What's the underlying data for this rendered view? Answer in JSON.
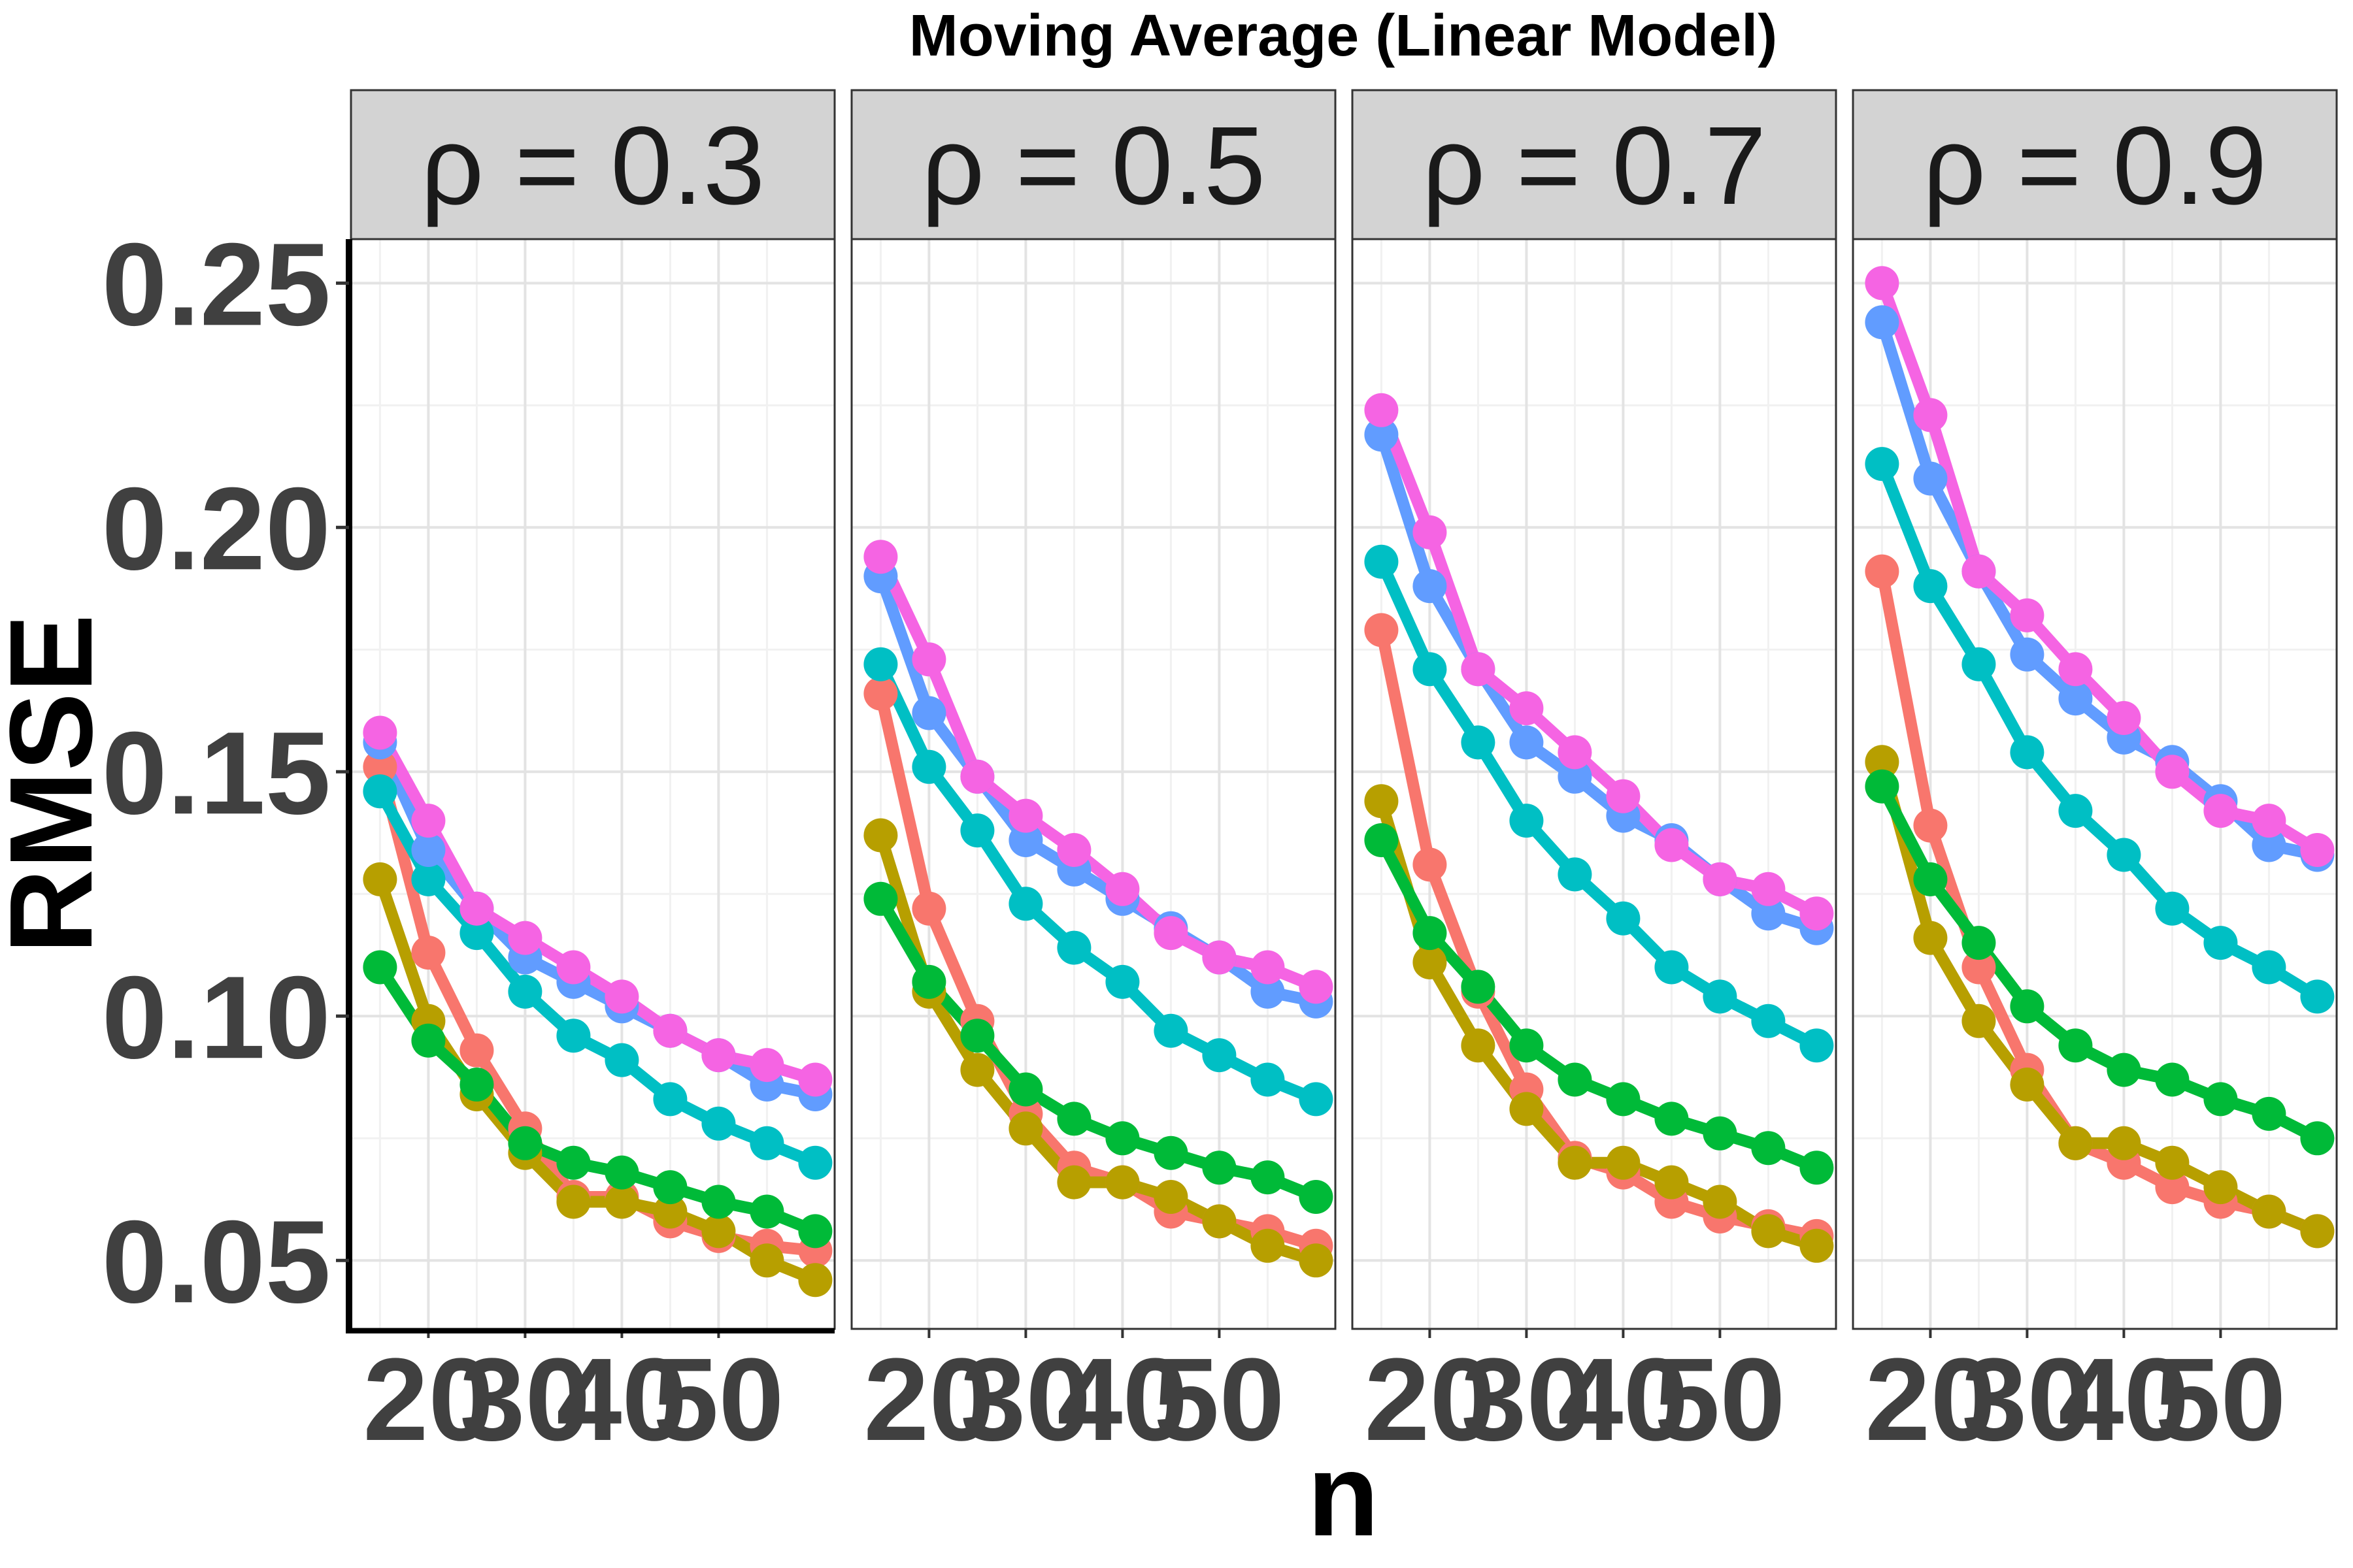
{
  "chart_data": {
    "type": "line",
    "title": "Moving Average (Linear Model)",
    "xlabel": "n",
    "ylabel": "RMSE",
    "facet_var_symbol": "ρ",
    "facets": [
      {
        "label": "ρ = 0.3",
        "series": [
          {
            "name": "series-1",
            "color": "#F8766D",
            "values": [
              0.151,
              0.113,
              0.093,
              0.077,
              0.063,
              0.063,
              0.058,
              0.055,
              0.053,
              0.052
            ]
          },
          {
            "name": "series-2",
            "color": "#B79F00",
            "values": [
              0.128,
              0.099,
              0.084,
              0.072,
              0.062,
              0.062,
              0.06,
              0.056,
              0.05,
              0.046
            ]
          },
          {
            "name": "series-3",
            "color": "#00BA38",
            "values": [
              0.11,
              0.095,
              0.086,
              0.074,
              0.07,
              0.068,
              0.065,
              0.062,
              0.06,
              0.056
            ]
          },
          {
            "name": "series-4",
            "color": "#00BFC4",
            "values": [
              0.146,
              0.128,
              0.117,
              0.105,
              0.096,
              0.091,
              0.083,
              0.078,
              0.074,
              0.07
            ]
          },
          {
            "name": "series-5",
            "color": "#619CFF",
            "values": [
              0.156,
              0.134,
              0.122,
              0.112,
              0.107,
              0.102,
              0.097,
              0.092,
              0.086,
              0.084
            ]
          },
          {
            "name": "series-6",
            "color": "#F564E3",
            "values": [
              0.158,
              0.14,
              0.122,
              0.116,
              0.11,
              0.104,
              0.097,
              0.092,
              0.09,
              0.087
            ]
          }
        ]
      },
      {
        "label": "ρ = 0.5",
        "series": [
          {
            "name": "series-1",
            "color": "#F8766D",
            "values": [
              0.166,
              0.122,
              0.099,
              0.08,
              0.069,
              0.066,
              0.06,
              0.058,
              0.056,
              0.053
            ]
          },
          {
            "name": "series-2",
            "color": "#B79F00",
            "values": [
              0.137,
              0.105,
              0.089,
              0.077,
              0.066,
              0.066,
              0.063,
              0.058,
              0.053,
              0.05
            ]
          },
          {
            "name": "series-3",
            "color": "#00BA38",
            "values": [
              0.124,
              0.107,
              0.096,
              0.085,
              0.079,
              0.075,
              0.072,
              0.069,
              0.067,
              0.063
            ]
          },
          {
            "name": "series-4",
            "color": "#00BFC4",
            "values": [
              0.172,
              0.151,
              0.138,
              0.123,
              0.114,
              0.107,
              0.097,
              0.092,
              0.087,
              0.083
            ]
          },
          {
            "name": "series-5",
            "color": "#619CFF",
            "values": [
              0.19,
              0.162,
              0.149,
              0.136,
              0.13,
              0.124,
              0.118,
              0.112,
              0.105,
              0.103
            ]
          },
          {
            "name": "series-6",
            "color": "#F564E3",
            "values": [
              0.194,
              0.173,
              0.149,
              0.141,
              0.134,
              0.126,
              0.117,
              0.112,
              0.11,
              0.106
            ]
          }
        ]
      },
      {
        "label": "ρ = 0.7",
        "series": [
          {
            "name": "series-1",
            "color": "#F8766D",
            "values": [
              0.179,
              0.131,
              0.105,
              0.085,
              0.071,
              0.068,
              0.062,
              0.059,
              0.057,
              0.055
            ]
          },
          {
            "name": "series-2",
            "color": "#B79F00",
            "values": [
              0.144,
              0.111,
              0.094,
              0.081,
              0.07,
              0.07,
              0.066,
              0.062,
              0.056,
              0.053
            ]
          },
          {
            "name": "series-3",
            "color": "#00BA38",
            "values": [
              0.136,
              0.117,
              0.106,
              0.094,
              0.087,
              0.083,
              0.079,
              0.076,
              0.073,
              0.069
            ]
          },
          {
            "name": "series-4",
            "color": "#00BFC4",
            "values": [
              0.193,
              0.171,
              0.156,
              0.14,
              0.129,
              0.12,
              0.11,
              0.104,
              0.099,
              0.094
            ]
          },
          {
            "name": "series-5",
            "color": "#619CFF",
            "values": [
              0.219,
              0.188,
              0.171,
              0.156,
              0.149,
              0.141,
              0.136,
              0.128,
              0.121,
              0.118
            ]
          },
          {
            "name": "series-6",
            "color": "#F564E3",
            "values": [
              0.224,
              0.199,
              0.171,
              0.163,
              0.154,
              0.145,
              0.135,
              0.128,
              0.126,
              0.121
            ]
          }
        ]
      },
      {
        "label": "ρ = 0.9",
        "series": [
          {
            "name": "series-1",
            "color": "#F8766D",
            "values": [
              0.191,
              0.139,
              0.11,
              0.089,
              0.074,
              0.07,
              0.065,
              0.062,
              0.06,
              0.056
            ]
          },
          {
            "name": "series-2",
            "color": "#B79F00",
            "values": [
              0.152,
              0.116,
              0.099,
              0.086,
              0.074,
              0.074,
              0.07,
              0.065,
              0.06,
              0.056
            ]
          },
          {
            "name": "series-3",
            "color": "#00BA38",
            "values": [
              0.147,
              0.128,
              0.115,
              0.102,
              0.094,
              0.089,
              0.087,
              0.083,
              0.08,
              0.075
            ]
          },
          {
            "name": "series-4",
            "color": "#00BFC4",
            "values": [
              0.213,
              0.188,
              0.172,
              0.154,
              0.142,
              0.133,
              0.122,
              0.115,
              0.11,
              0.104
            ]
          },
          {
            "name": "series-5",
            "color": "#619CFF",
            "values": [
              0.242,
              0.21,
              0.191,
              0.174,
              0.165,
              0.157,
              0.152,
              0.144,
              0.135,
              0.133
            ]
          },
          {
            "name": "series-6",
            "color": "#F564E3",
            "values": [
              0.25,
              0.223,
              0.191,
              0.182,
              0.171,
              0.161,
              0.15,
              0.142,
              0.14,
              0.134
            ]
          }
        ]
      }
    ],
    "x": [
      15,
      20,
      25,
      30,
      35,
      40,
      45,
      50,
      55,
      60
    ],
    "xlim": [
      12,
      62
    ],
    "x_ticks": [
      20,
      30,
      40,
      50
    ],
    "x_tick_labels": [
      "20",
      "30",
      "40",
      "50"
    ],
    "ylim": [
      0.036,
      0.259
    ],
    "y_ticks": [
      0.05,
      0.1,
      0.15,
      0.2,
      0.25
    ],
    "y_tick_labels": [
      "0.05",
      "0.10",
      "0.15",
      "0.20",
      "0.25"
    ],
    "grid": true,
    "legend": "none"
  }
}
